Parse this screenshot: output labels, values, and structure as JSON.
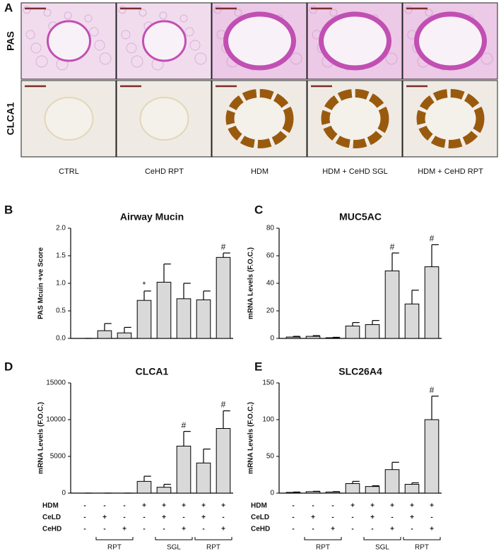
{
  "figure": {
    "panel_a": {
      "letter": "A",
      "row_labels": [
        "PAS",
        "CLCA1"
      ],
      "column_labels": [
        "CTRL",
        "CeHD RPT",
        "HDM",
        "HDM + CeHD SGL",
        "HDM + CeHD RPT"
      ]
    }
  },
  "chart_data": [
    {
      "type": "bar",
      "letter": "B",
      "title": "Airway Mucin",
      "y_label": "PAS Mcuin +ve Score",
      "categories": [
        null,
        null,
        null,
        null,
        null,
        null,
        null,
        null
      ],
      "values": [
        0,
        0.14,
        0.1,
        0.69,
        1.02,
        0.72,
        0.7,
        1.47
      ],
      "errors": [
        0,
        0.13,
        0.1,
        0.17,
        0.33,
        0.28,
        0.16,
        0.08
      ],
      "markers": [
        null,
        null,
        null,
        "*",
        null,
        null,
        null,
        "#"
      ],
      "color": "#d9d9d9",
      "ylim": [
        0,
        2
      ],
      "yticks": [
        {
          "value": 0,
          "label": "0.0"
        },
        {
          "value": 0.5,
          "label": "0.5"
        },
        {
          "value": 1,
          "label": "1.0"
        },
        {
          "value": 1.5,
          "label": "1.5"
        },
        {
          "value": 2,
          "label": "2.0"
        }
      ]
    },
    {
      "type": "bar",
      "letter": "C",
      "title": "MUC5AC",
      "y_label": "mRNA Levels (F.O.C.)",
      "categories": [
        null,
        null,
        null,
        null,
        null,
        null,
        null,
        null
      ],
      "values": [
        1,
        1.5,
        0.5,
        9,
        10,
        49,
        25,
        52
      ],
      "errors": [
        0.5,
        0.5,
        0.3,
        2.5,
        3,
        13,
        10,
        16
      ],
      "markers": [
        null,
        null,
        null,
        null,
        null,
        "#",
        null,
        "#"
      ],
      "color": "#d9d9d9",
      "ylim": [
        0,
        80
      ],
      "yticks": [
        0,
        20,
        40,
        60,
        80
      ]
    },
    {
      "type": "bar",
      "letter": "D",
      "title": "CLCA1",
      "y_label": "mRNA Levels (F.O.C.)",
      "categories": [
        null,
        null,
        null,
        null,
        null,
        null,
        null,
        null
      ],
      "values": [
        0,
        0,
        0,
        1600,
        800,
        6400,
        4100,
        8800
      ],
      "errors": [
        0,
        0,
        0,
        700,
        400,
        2000,
        1900,
        2400
      ],
      "markers": [
        null,
        null,
        null,
        null,
        null,
        "#",
        null,
        "#"
      ],
      "color": "#d9d9d9",
      "ylim": [
        0,
        15000
      ],
      "yticks": [
        0,
        5000,
        10000,
        15000
      ],
      "treatments": [
        {
          "name": "HDM",
          "marks": [
            "-",
            "-",
            "-",
            "+",
            "+",
            "+",
            "+",
            "+"
          ]
        },
        {
          "name": "CeLD",
          "marks": [
            "-",
            "+",
            "-",
            "-",
            "+",
            "-",
            "+",
            "-"
          ]
        },
        {
          "name": "CeHD",
          "marks": [
            "-",
            "-",
            "+",
            "-",
            "-",
            "+",
            "-",
            "+"
          ]
        }
      ],
      "groups": [
        null,
        "RPT",
        "RPT",
        null,
        "SGL",
        "SGL",
        "RPT",
        "RPT"
      ]
    },
    {
      "type": "bar",
      "letter": "E",
      "title": "SLC26A4",
      "y_label": "mRNA Levels (F.O.C.)",
      "categories": [
        null,
        null,
        null,
        null,
        null,
        null,
        null,
        null
      ],
      "values": [
        1,
        2,
        1.5,
        13,
        9,
        32,
        12,
        100
      ],
      "errors": [
        0.5,
        0.5,
        0.5,
        3,
        1,
        10,
        2,
        32
      ],
      "markers": [
        null,
        null,
        null,
        null,
        null,
        null,
        null,
        "#"
      ],
      "color": "#d9d9d9",
      "ylim": [
        0,
        150
      ],
      "yticks": [
        0,
        50,
        100,
        150
      ],
      "treatments": [
        {
          "name": "HDM",
          "marks": [
            "-",
            "-",
            "-",
            "+",
            "+",
            "+",
            "+",
            "+"
          ]
        },
        {
          "name": "CeLD",
          "marks": [
            "-",
            "+",
            "-",
            "-",
            "+",
            "-",
            "+",
            "-"
          ]
        },
        {
          "name": "CeHD",
          "marks": [
            "-",
            "-",
            "+",
            "-",
            "-",
            "+",
            "-",
            "+"
          ]
        }
      ],
      "groups": [
        null,
        "RPT",
        "RPT",
        null,
        "SGL",
        "SGL",
        "RPT",
        "RPT"
      ]
    }
  ]
}
